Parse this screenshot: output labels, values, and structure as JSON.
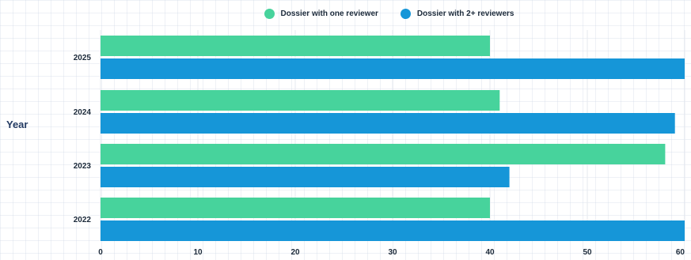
{
  "legend": {
    "items": [
      {
        "label": "Dossier with one reviewer",
        "color": "#47d39c"
      },
      {
        "label": "Dossier with 2+ reviewers",
        "color": "#1696d8"
      }
    ]
  },
  "chart_data": {
    "type": "bar",
    "orientation": "horizontal",
    "title": "",
    "xlabel": "",
    "ylabel": "Year",
    "categories": [
      "2025",
      "2024",
      "2023",
      "2022"
    ],
    "series": [
      {
        "name": "Dossier with one reviewer",
        "values": [
          40,
          41,
          58,
          40
        ],
        "color": "#47d39c"
      },
      {
        "name": "Dossier with 2+ reviewers",
        "values": [
          60,
          59,
          42,
          60
        ],
        "color": "#1696d8"
      }
    ],
    "xlim": [
      0,
      60
    ],
    "xticks": [
      0,
      10,
      20,
      30,
      40,
      50,
      60
    ],
    "grid": true,
    "legend_position": "top"
  }
}
